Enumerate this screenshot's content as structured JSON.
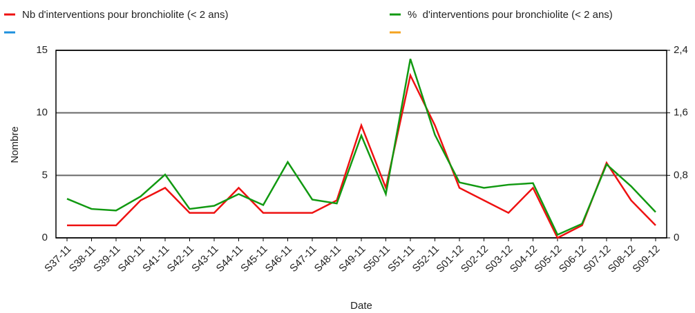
{
  "chart_data": {
    "type": "line",
    "categories": [
      "S37-11",
      "S38-11",
      "S39-11",
      "S40-11",
      "S41-11",
      "S42-11",
      "S43-11",
      "S44-11",
      "S45-11",
      "S46-11",
      "S47-11",
      "S48-11",
      "S49-11",
      "S50-11",
      "S51-11",
      "S52-11",
      "S01-12",
      "S02-12",
      "S03-12",
      "S04-12",
      "S05-12",
      "S06-12",
      "S07-12",
      "S08-12",
      "S09-12"
    ],
    "series": [
      {
        "name": "Nb d'interventions pour bronchiolite (< 2 ans)",
        "color": "#ee1111",
        "values": [
          1,
          1,
          1,
          3,
          4,
          2,
          2,
          4,
          2,
          2,
          2,
          3,
          9,
          4,
          13,
          9,
          4,
          3,
          2,
          4,
          0,
          1,
          6,
          3,
          1
        ]
      },
      {
        "name": "%  d'interventions pour bronchiolite (< 2 ans)",
        "color": "#119911",
        "axis": "y2",
        "values": [
          0.5,
          0.37,
          0.35,
          0.53,
          0.81,
          0.37,
          0.41,
          0.56,
          0.42,
          0.97,
          0.49,
          0.44,
          1.31,
          0.56,
          2.29,
          1.32,
          0.71,
          0.64,
          0.68,
          0.7,
          0.04,
          0.18,
          0.94,
          0.66,
          0.33
        ]
      }
    ],
    "ylabel": "Nombre",
    "xlabel": "Date",
    "ylim": [
      0,
      15
    ],
    "yticks": [
      0,
      5,
      10,
      15
    ],
    "y2lim": [
      0,
      2.4
    ],
    "y2ticks": [
      0,
      {
        "value": 0.8,
        "label": "0,8"
      },
      {
        "value": 1.6,
        "label": "1,6"
      },
      {
        "value": 2.4,
        "label": "2,4"
      }
    ],
    "grid": true
  }
}
